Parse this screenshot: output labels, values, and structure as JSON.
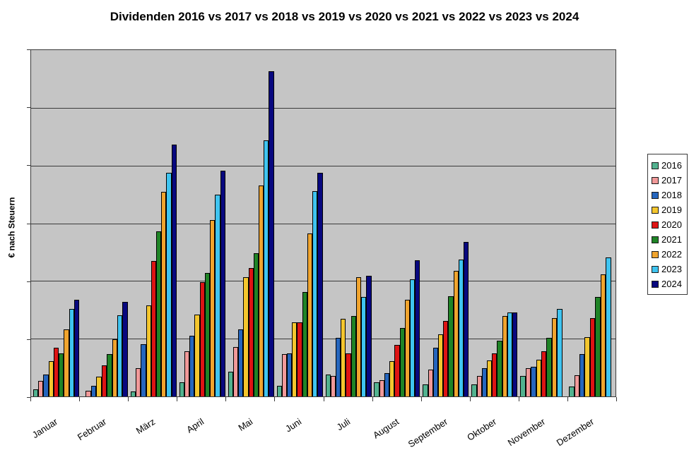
{
  "title": "Dividenden 2016 vs 2017 vs 2018 vs 2019 vs 2020 vs 2021 vs 2022 vs 2023 vs 2024",
  "y_axis_label": "€ nach Steuern",
  "colors": {
    "plot_background": "#c5c5c5",
    "grid": "#3a3a3a",
    "bar_border": "#000000"
  },
  "legend": {
    "position": "right",
    "entries": [
      {
        "label": "2016",
        "color": "#52b28f"
      },
      {
        "label": "2017",
        "color": "#f19999"
      },
      {
        "label": "2018",
        "color": "#2566be"
      },
      {
        "label": "2019",
        "color": "#f4c62e"
      },
      {
        "label": "2020",
        "color": "#de1414"
      },
      {
        "label": "2021",
        "color": "#1f8426"
      },
      {
        "label": "2022",
        "color": "#f0a42e"
      },
      {
        "label": "2023",
        "color": "#3fc4f0"
      },
      {
        "label": "2024",
        "color": "#08087f"
      }
    ]
  },
  "chart_data": {
    "type": "bar",
    "title": "Dividenden 2016 vs 2017 vs 2018 vs 2019 vs 2020 vs 2021 vs 2022 vs 2023 vs 2024",
    "xlabel": "",
    "ylabel": "€ nach Steuern",
    "categories": [
      "Januar",
      "Februar",
      "März",
      "April",
      "Mai",
      "Juni",
      "Juli",
      "August",
      "September",
      "Oktober",
      "November",
      "Dezember"
    ],
    "ylim": [
      0,
      600
    ],
    "y_gridline_interval": 100,
    "y_tick_labels_visible": false,
    "grid": true,
    "legend_position": "right",
    "value_note": "y-axis shows no numeric labels; values estimated in relative units where one gridline interval = 100",
    "series": [
      {
        "name": "2016",
        "color": "#52b28f",
        "values": [
          12,
          0,
          9,
          24,
          43,
          18,
          38,
          24,
          21,
          21,
          36,
          17
        ]
      },
      {
        "name": "2017",
        "color": "#f19999",
        "values": [
          27,
          10,
          49,
          78,
          85,
          73,
          35,
          28,
          46,
          35,
          49,
          37
        ]
      },
      {
        "name": "2018",
        "color": "#2566be",
        "values": [
          38,
          18,
          91,
          105,
          116,
          75,
          101,
          40,
          84,
          49,
          51,
          73
        ]
      },
      {
        "name": "2019",
        "color": "#f4c62e",
        "values": [
          61,
          34,
          158,
          142,
          207,
          128,
          134,
          61,
          108,
          62,
          63,
          103
        ]
      },
      {
        "name": "2020",
        "color": "#de1414",
        "values": [
          84,
          54,
          235,
          198,
          223,
          128,
          74,
          89,
          131,
          74,
          78,
          136
        ]
      },
      {
        "name": "2021",
        "color": "#1f8426",
        "values": [
          75,
          73,
          286,
          214,
          248,
          181,
          139,
          119,
          174,
          97,
          101,
          172
        ]
      },
      {
        "name": "2022",
        "color": "#f0a42e",
        "values": [
          116,
          99,
          354,
          305,
          365,
          282,
          207,
          168,
          218,
          139,
          136,
          212
        ]
      },
      {
        "name": "2023",
        "color": "#3fc4f0",
        "values": [
          151,
          140,
          387,
          350,
          444,
          356,
          172,
          203,
          237,
          145,
          152,
          241
        ]
      },
      {
        "name": "2024",
        "color": "#08087f",
        "values": [
          168,
          164,
          436,
          391,
          563,
          388,
          209,
          236,
          268,
          145,
          null,
          null
        ]
      }
    ]
  }
}
